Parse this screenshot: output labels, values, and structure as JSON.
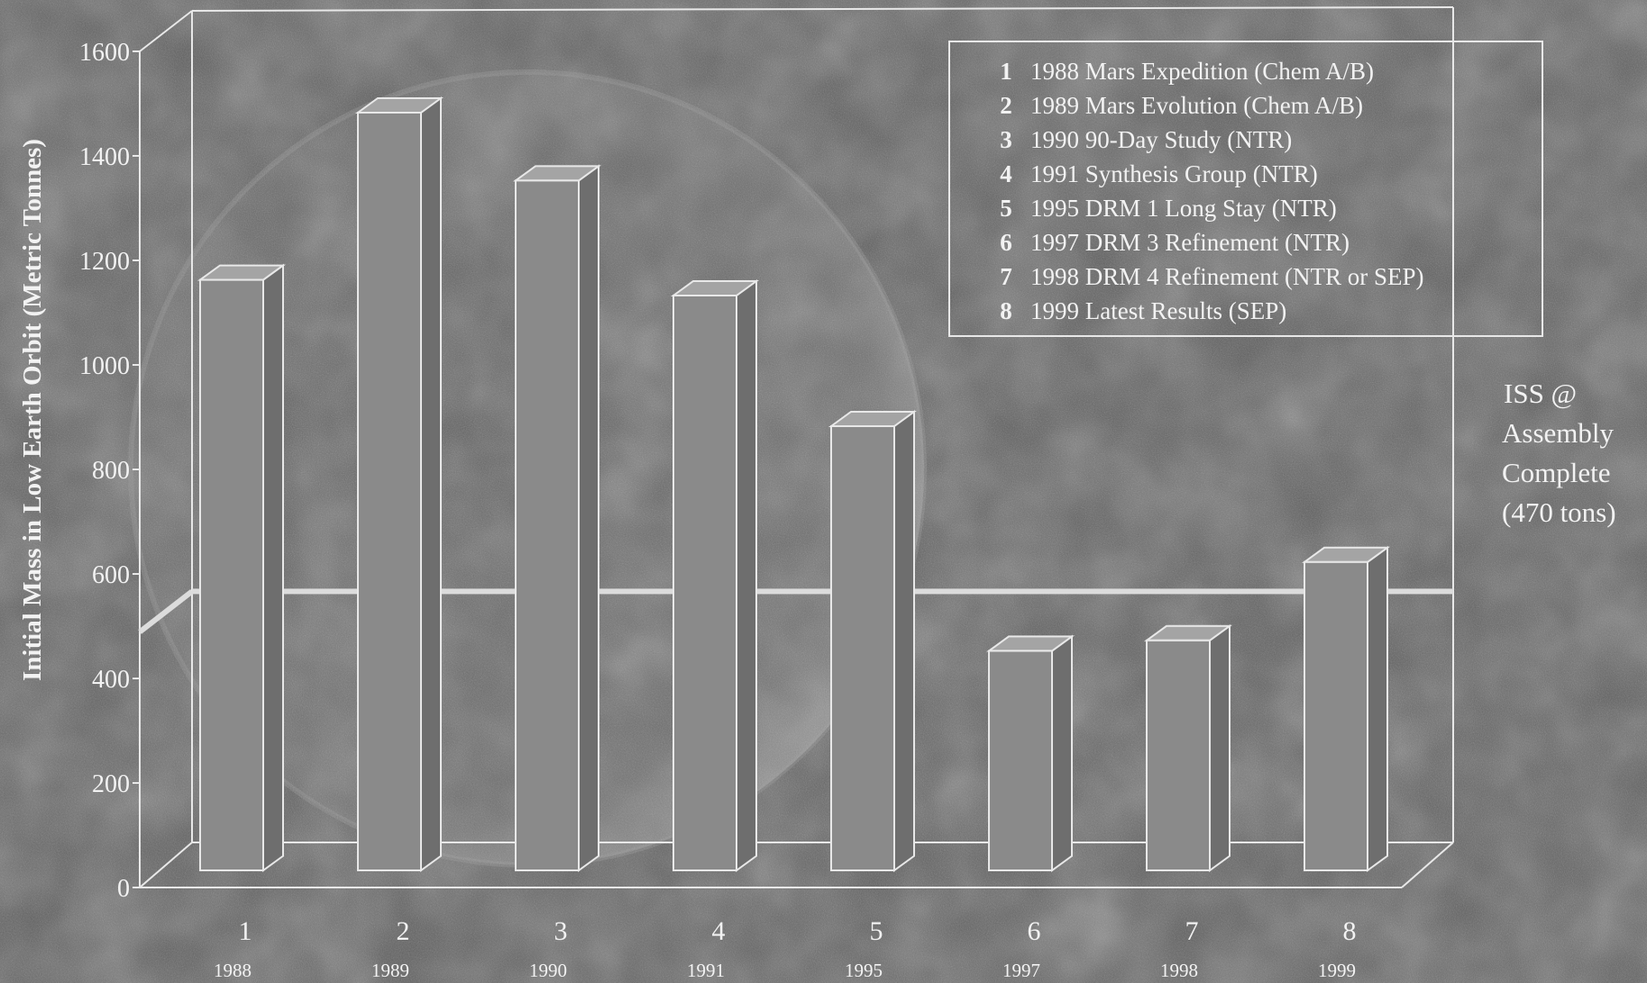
{
  "chart_data": {
    "type": "bar",
    "style": "3d",
    "ylabel": "Initial Mass in Low Earth Orbit (Metric Tonnes)",
    "ylim": [
      0,
      1600
    ],
    "yticks": [
      0,
      200,
      400,
      600,
      800,
      1000,
      1200,
      1400,
      1600
    ],
    "categories": [
      "1",
      "2",
      "3",
      "4",
      "5",
      "6",
      "7",
      "8"
    ],
    "years": [
      "1988",
      "1989",
      "1990",
      "1991",
      "1995",
      "1997",
      "1998",
      "1999"
    ],
    "values": [
      1130,
      1450,
      1320,
      1100,
      850,
      420,
      440,
      590
    ],
    "legend": [
      {
        "num": "1",
        "text": "1988 Mars Expedition (Chem A/B)"
      },
      {
        "num": "2",
        "text": "1989 Mars Evolution (Chem A/B)"
      },
      {
        "num": "3",
        "text": "1990 90-Day Study (NTR)"
      },
      {
        "num": "4",
        "text": "1991 Synthesis Group (NTR)"
      },
      {
        "num": "5",
        "text": "1995 DRM 1 Long Stay (NTR)"
      },
      {
        "num": "6",
        "text": "1997 DRM 3 Refinement (NTR)"
      },
      {
        "num": "7",
        "text": "1998 DRM 4 Refinement (NTR or SEP)"
      },
      {
        "num": "8",
        "text": "1999 Latest Results (SEP)"
      }
    ],
    "legend_position": "top-right",
    "reference_line": {
      "value": 470,
      "label_lines": [
        "ISS @",
        "Assembly",
        "Complete",
        "(470 tons)"
      ]
    },
    "colors": {
      "background": "#5a5a5a",
      "bar_front": "#8a8a8a",
      "bar_side": "#6e6e6e",
      "bar_top": "#a4a4a4",
      "outline": "#e8e8e8",
      "text": "#f2f2f2"
    }
  }
}
